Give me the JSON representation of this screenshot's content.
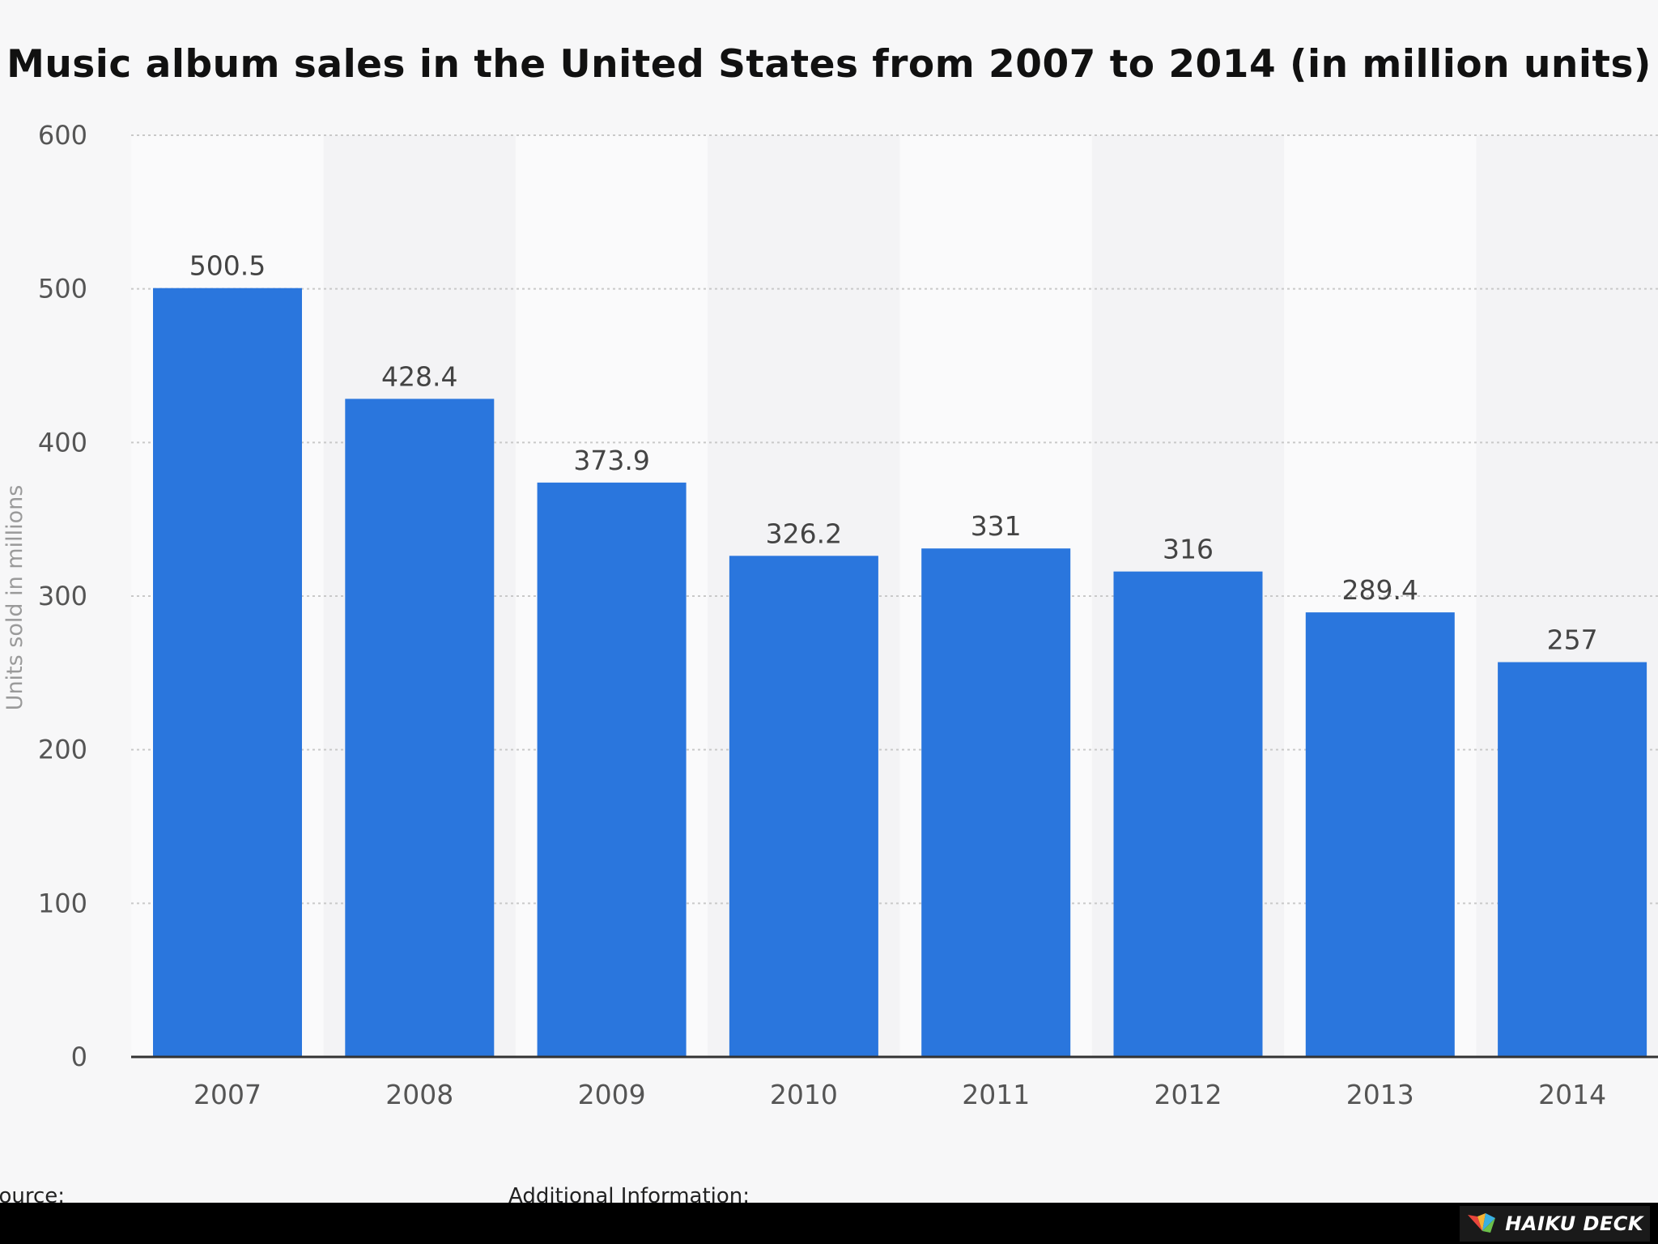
{
  "chart_data": {
    "type": "bar",
    "title": "Music album sales in the United States from 2007 to 2014 (in million units)",
    "xlabel": "",
    "ylabel": "Units sold in millions",
    "categories": [
      "2007",
      "2008",
      "2009",
      "2010",
      "2011",
      "2012",
      "2013",
      "2014"
    ],
    "values": [
      500.5,
      428.4,
      373.9,
      326.2,
      331,
      316,
      289.4,
      257
    ],
    "value_labels": [
      "500.5",
      "428.4",
      "373.9",
      "326.2",
      "331",
      "316",
      "289.4",
      "257"
    ],
    "ylim": [
      0,
      600
    ],
    "yticks": [
      0,
      100,
      200,
      300,
      400,
      500,
      600
    ],
    "grid": true,
    "legend": "none",
    "bar_color": "#2a76dd"
  },
  "footer": {
    "source_label": "Source:",
    "additional_info_label": "Additional Information:",
    "brand": "HAIKU DECK"
  }
}
